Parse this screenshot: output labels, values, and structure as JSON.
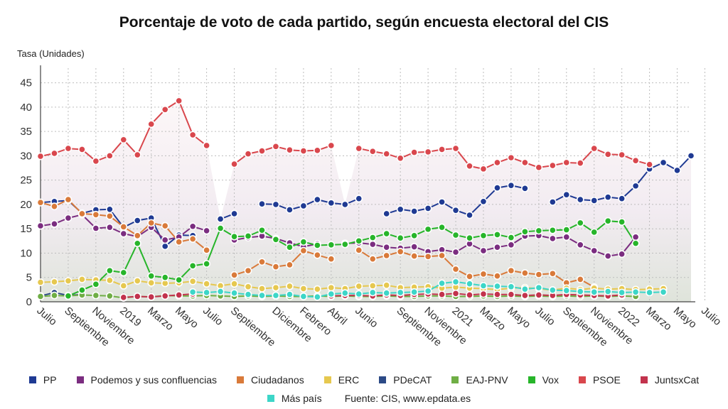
{
  "chart_data": {
    "type": "line",
    "title": "Porcentaje de voto de cada partido, según encuesta electoral del CIS",
    "ylabel": "Tasa (Unidades)",
    "xlabel": "",
    "ylim": [
      0,
      48
    ],
    "y_ticks": [
      0,
      5,
      10,
      15,
      20,
      25,
      30,
      35,
      40,
      45
    ],
    "grid": true,
    "legend_position": "bottom",
    "source": "Fuente: CIS, www.epdata.es",
    "x_tick_labels": [
      {
        "i": 0,
        "label": "Julio"
      },
      {
        "i": 2,
        "label": "Septiembre"
      },
      {
        "i": 4,
        "label": "Noviembre"
      },
      {
        "i": 6,
        "label": "2019"
      },
      {
        "i": 8,
        "label": "Marzo"
      },
      {
        "i": 10,
        "label": "Mayo"
      },
      {
        "i": 12,
        "label": "Julio"
      },
      {
        "i": 14,
        "label": "Septiembre"
      },
      {
        "i": 17,
        "label": "Diciembre"
      },
      {
        "i": 19,
        "label": "Febrero"
      },
      {
        "i": 21,
        "label": "Abril"
      },
      {
        "i": 23,
        "label": "Junio"
      },
      {
        "i": 26,
        "label": "Septiembre"
      },
      {
        "i": 28,
        "label": "Noviembre"
      },
      {
        "i": 30,
        "label": "2021"
      },
      {
        "i": 32,
        "label": "Marzo"
      },
      {
        "i": 34,
        "label": "Mayo"
      },
      {
        "i": 36,
        "label": "Julio"
      },
      {
        "i": 38,
        "label": "Septiembre"
      },
      {
        "i": 40,
        "label": "Noviembre"
      },
      {
        "i": 42,
        "label": "2022"
      },
      {
        "i": 44,
        "label": "Marzo"
      },
      {
        "i": 46,
        "label": "Mayo"
      },
      {
        "i": 48,
        "label": "Julio"
      }
    ],
    "series": [
      {
        "name": "PP",
        "color": "#1f3a93",
        "values": [
          20.4,
          20.6,
          20.8,
          18.2,
          18.9,
          19.0,
          15.3,
          16.7,
          17.2,
          11.4,
          13.7,
          13.6,
          null,
          17.0,
          18.1,
          null,
          20.1,
          20.0,
          18.9,
          19.7,
          21.0,
          20.3,
          20.0,
          21.2,
          null,
          18.1,
          19.0,
          18.6,
          19.2,
          20.5,
          18.8,
          17.8,
          20.6,
          23.4,
          23.9,
          23.3,
          null,
          20.5,
          22.0,
          21.0,
          20.8,
          21.5,
          21.2,
          23.8,
          27.3,
          28.6,
          27.0,
          30.0
        ]
      },
      {
        "name": "PSOE",
        "color": "#d9474d",
        "values": [
          29.9,
          30.5,
          31.5,
          31.3,
          28.9,
          30.0,
          33.3,
          30.2,
          36.5,
          39.5,
          41.3,
          34.3,
          32.1,
          null,
          28.3,
          30.4,
          31.0,
          31.9,
          31.2,
          31.0,
          31.1,
          32.1,
          null,
          31.5,
          30.9,
          30.4,
          29.5,
          30.7,
          30.8,
          31.3,
          31.5,
          27.9,
          27.3,
          28.6,
          29.6,
          28.6,
          27.6,
          28.0,
          28.6,
          28.5,
          31.5,
          30.3,
          30.2,
          29.0,
          28.2,
          null,
          null,
          null
        ]
      },
      {
        "name": "Podemos y sus confluencias",
        "color": "#7b2d80",
        "values": [
          15.6,
          16.0,
          17.2,
          17.9,
          15.1,
          15.3,
          14.0,
          13.4,
          15.3,
          12.7,
          13.3,
          15.5,
          14.6,
          null,
          12.7,
          13.2,
          13.5,
          13.0,
          12.1,
          11.3,
          11.9,
          null,
          12.0,
          12.1,
          11.8,
          11.2,
          11.0,
          11.3,
          10.3,
          10.7,
          10.2,
          11.9,
          10.5,
          11.2,
          11.7,
          13.5,
          13.6,
          13.0,
          13.3,
          11.7,
          10.5,
          9.4,
          9.8,
          13.3,
          null,
          null,
          null,
          null
        ]
      },
      {
        "name": "Ciudadanos",
        "color": "#d97a3a",
        "values": [
          20.4,
          19.6,
          21.0,
          18.1,
          17.9,
          17.6,
          15.4,
          13.6,
          16.2,
          15.6,
          12.3,
          12.9,
          10.6,
          null,
          5.5,
          6.4,
          8.2,
          7.2,
          7.6,
          10.5,
          9.6,
          8.8,
          null,
          10.6,
          8.8,
          9.5,
          10.3,
          9.4,
          9.3,
          9.5,
          6.7,
          5.2,
          5.7,
          5.3,
          6.4,
          5.9,
          5.6,
          5.8,
          3.9,
          4.6,
          3.0,
          null,
          null,
          null,
          null,
          null,
          null,
          null
        ]
      },
      {
        "name": "ERC",
        "color": "#e6c84f",
        "values": [
          4.0,
          4.1,
          4.3,
          4.6,
          4.5,
          4.4,
          3.3,
          4.3,
          3.9,
          3.8,
          3.9,
          4.2,
          3.7,
          3.3,
          3.7,
          3.1,
          2.7,
          2.9,
          3.2,
          2.7,
          2.6,
          2.9,
          2.7,
          3.2,
          3.3,
          3.4,
          2.9,
          3.0,
          3.1,
          2.8,
          3.0,
          2.8,
          2.7,
          2.5,
          2.8,
          2.9,
          2.7,
          2.4,
          2.8,
          2.5,
          2.8,
          2.6,
          2.7,
          2.5,
          2.6,
          2.7,
          null,
          null
        ]
      },
      {
        "name": "PDeCAT",
        "color": "#2c4a86",
        "values": [
          1.2,
          1.9,
          1.3,
          1.5,
          null,
          null,
          null,
          null,
          null,
          null,
          null,
          null,
          null,
          null,
          null,
          null,
          null,
          null,
          null,
          null,
          null,
          null,
          null,
          null,
          null,
          null,
          null,
          null,
          null,
          null,
          null,
          null,
          null,
          null,
          null,
          null,
          null,
          null,
          null,
          null,
          null,
          null,
          null,
          null,
          null,
          null,
          null,
          null
        ]
      },
      {
        "name": "EAJ-PNV",
        "color": "#6fae45",
        "values": [
          1.1,
          1.3,
          1.2,
          1.4,
          1.3,
          1.2,
          0.8,
          1.1,
          1.0,
          1.3,
          1.2,
          1.2,
          1.3,
          1.2,
          1.1,
          1.2,
          1.1,
          1.2,
          1.1,
          1.1,
          1.2,
          1.1,
          1.2,
          1.1,
          1.1,
          1.2,
          1.1,
          1.1,
          1.2,
          1.2,
          1.1,
          1.1,
          1.2,
          1.1,
          1.2,
          1.1,
          1.2,
          1.1,
          1.2,
          1.1,
          1.2,
          1.1,
          1.2,
          1.1,
          null,
          null,
          null,
          null
        ]
      },
      {
        "name": "Vox",
        "color": "#27b52a",
        "values": [
          null,
          null,
          1.2,
          2.4,
          3.6,
          6.4,
          6.0,
          12.0,
          5.3,
          5.0,
          4.5,
          7.4,
          7.8,
          15.1,
          13.4,
          13.5,
          14.7,
          12.8,
          11.2,
          12.3,
          11.6,
          11.7,
          11.8,
          12.5,
          13.2,
          14.0,
          13.1,
          13.6,
          14.9,
          15.3,
          13.7,
          13.1,
          13.6,
          13.8,
          13.2,
          14.4,
          14.6,
          14.7,
          14.8,
          16.2,
          14.3,
          16.6,
          16.4,
          12.0,
          null,
          null,
          null,
          null
        ]
      },
      {
        "name": "JuntsxCat",
        "color": "#c2334d",
        "values": [
          null,
          null,
          null,
          null,
          null,
          null,
          0.9,
          1.1,
          1.0,
          1.2,
          1.4,
          1.6,
          null,
          null,
          null,
          null,
          null,
          null,
          null,
          null,
          null,
          1.2,
          1.3,
          1.3,
          1.2,
          1.4,
          1.3,
          1.5,
          1.6,
          1.5,
          1.7,
          1.4,
          1.6,
          1.5,
          1.5,
          1.3,
          1.4,
          1.3,
          1.5,
          1.4,
          1.3,
          1.2,
          1.4,
          null,
          null,
          null,
          null,
          null
        ]
      },
      {
        "name": "Más país",
        "color": "#3dd6c8",
        "values": [
          null,
          null,
          null,
          null,
          null,
          null,
          null,
          null,
          null,
          null,
          null,
          2.0,
          1.9,
          2.1,
          1.8,
          1.5,
          1.3,
          1.3,
          1.5,
          1.1,
          1.0,
          1.6,
          1.8,
          1.6,
          1.9,
          1.8,
          1.9,
          2.0,
          2.2,
          3.8,
          4.1,
          3.7,
          3.3,
          3.2,
          3.1,
          2.6,
          2.9,
          2.4,
          2.3,
          2.1,
          2.0,
          2.1,
          1.9,
          2.0,
          1.9,
          2.0,
          null,
          null
        ]
      }
    ]
  },
  "legend_order": [
    "PP",
    "Podemos y sus confluencias",
    "Ciudadanos",
    "ERC",
    "PDeCAT",
    "EAJ-PNV",
    "Vox",
    "PSOE",
    "JuntsxCat",
    "Más país"
  ]
}
